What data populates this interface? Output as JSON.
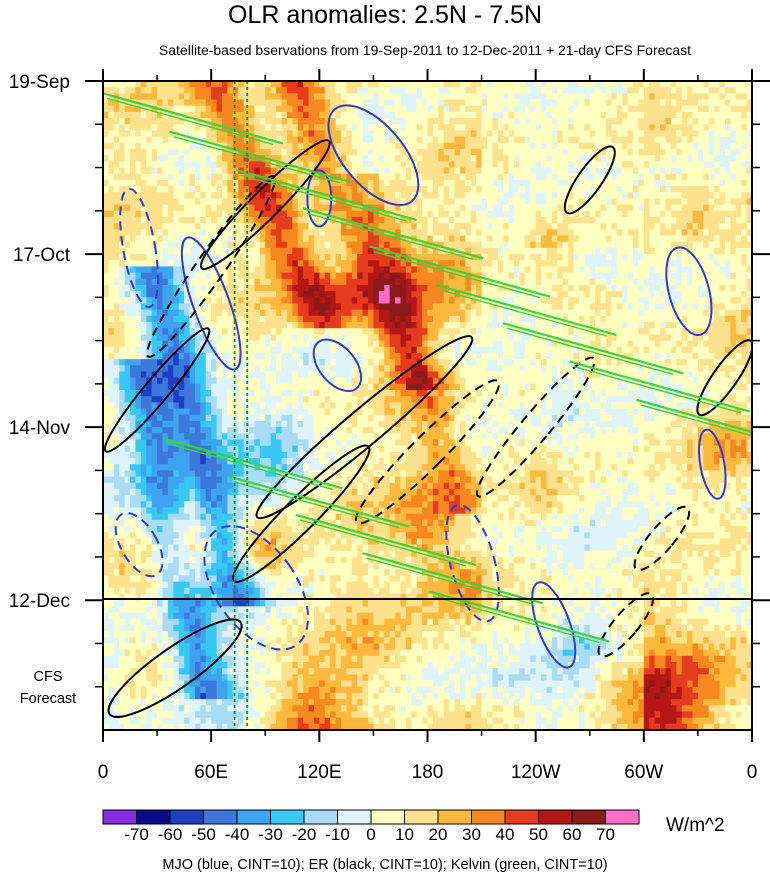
{
  "title": "OLR anomalies: 2.5N - 7.5N",
  "subtitle": "Satellite-based bservations from 19-Sep-2011 to 12-Dec-2011 + 21-day CFS Forecast",
  "forecast_label": "CFS Forecast",
  "colorbar_unit": "W/m^2",
  "footer": "MJO (blue, CINT=10); ER (black, CINT=10); Kelvin (green, CINT=10)",
  "colors": {
    "mjo": "#2f3bd6",
    "er": "#000000",
    "kelvin": "#3cd23c",
    "reference_line": "#1f8f1f"
  },
  "chart_data": {
    "type": "heatmap",
    "title": "OLR anomalies: 2.5N - 7.5N",
    "x_label": "",
    "y_label": "",
    "x_axis": {
      "range": [
        "0",
        "0"
      ],
      "tick_labels": [
        "0",
        "60E",
        "120E",
        "180",
        "120W",
        "60W",
        "0"
      ]
    },
    "y_axis": {
      "range": [
        "19-Sep-2011",
        "2-Jan-2012"
      ],
      "direction": "time increases downward",
      "tick_labels": [
        "19-Sep",
        "17-Oct",
        "14-Nov",
        "12-Dec"
      ],
      "observation_end": "12-Dec",
      "forecast_length_days": 21
    },
    "colorbar": {
      "levels": [
        "-70",
        "-60",
        "-50",
        "-40",
        "-30",
        "-20",
        "-10",
        "0",
        "10",
        "20",
        "30",
        "40",
        "50",
        "60",
        "70"
      ],
      "colors": [
        "#8a2be2",
        "#0a0a8c",
        "#1e3fbf",
        "#3c78dc",
        "#3ea3f0",
        "#37c8f5",
        "#a8dcf5",
        "#dff4fa",
        "#ffffc0",
        "#fde18c",
        "#fcb93c",
        "#f7871f",
        "#e63c1e",
        "#b51717",
        "#8b1a1a",
        "#ff6ec7"
      ],
      "unit": "W/m^2"
    },
    "overlays": [
      {
        "name": "MJO",
        "color": "blue",
        "cint": 10
      },
      {
        "name": "ER",
        "color": "black",
        "cint": 10
      },
      {
        "name": "Kelvin",
        "color": "green",
        "cint": 10
      }
    ]
  }
}
